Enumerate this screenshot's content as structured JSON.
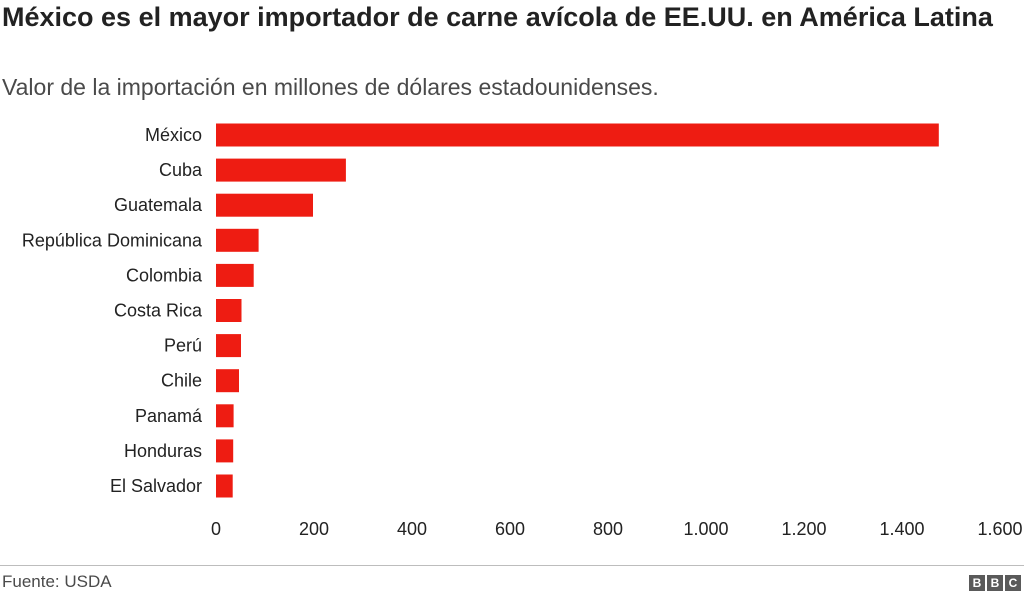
{
  "title": "México es el mayor importador de carne avícola de EE.UU. en América Latina",
  "subtitle": "Valor de la importación en millones de dólares estadounidenses.",
  "source": "Fuente: USDA",
  "logo": [
    "B",
    "B",
    "C"
  ],
  "colors": {
    "bar": "#ee1c12",
    "text": "#222222",
    "secondary_text": "#4a4a4a"
  },
  "chart_data": {
    "type": "bar",
    "orientation": "horizontal",
    "title": "México es el mayor importador de carne avícola de EE.UU. en América Latina",
    "xlabel": "",
    "ylabel": "",
    "categories": [
      "México",
      "Cuba",
      "Guatemala",
      "República Dominicana",
      "Colombia",
      "Costa Rica",
      "Perú",
      "Chile",
      "Panamá",
      "Honduras",
      "El Salvador"
    ],
    "values": [
      1475,
      265,
      198,
      87,
      77,
      52,
      51,
      47,
      36,
      35,
      34
    ],
    "xlim": [
      0,
      1600
    ],
    "xticks": [
      0,
      200,
      400,
      600,
      800,
      1000,
      1200,
      1400,
      1600
    ],
    "xtick_labels": [
      "0",
      "200",
      "400",
      "600",
      "800",
      "1.000",
      "1.200",
      "1.400",
      "1.600"
    ],
    "grid": false,
    "legend": "none"
  }
}
